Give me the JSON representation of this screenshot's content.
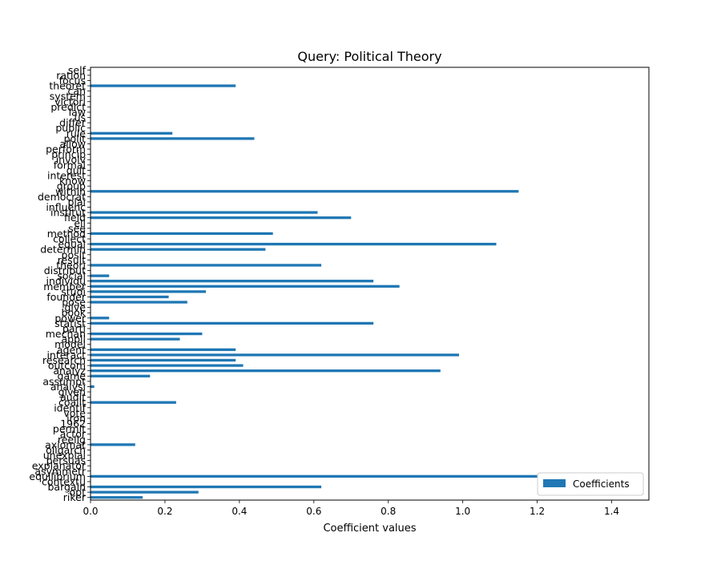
{
  "chart_data": {
    "type": "bar",
    "orientation": "horizontal",
    "title": "Query: Political Theory",
    "xlabel": "Coefficient values",
    "ylabel": "",
    "xlim": [
      0,
      1.5
    ],
    "x_ticks": [
      "0.0",
      "0.2",
      "0.4",
      "0.6",
      "0.8",
      "1.0",
      "1.2",
      "1.4"
    ],
    "legend": {
      "position": "lower-right",
      "entries": [
        "Coefficients"
      ]
    },
    "grid": false,
    "bar_color": "#1f77b4",
    "categories": [
      "riker",
      "opt",
      "bargain",
      "contextu",
      "equilibrium",
      "asymmetr",
      "explanator",
      "persuas",
      "unexplai",
      "oligarch",
      "axiomat",
      "reelig",
      "actor",
      "permit",
      "1962",
      "iron",
      "vote",
      "identif",
      "coalit",
      "audit",
      "given",
      "analysi",
      "assumpt",
      "game",
      "analyz",
      "outcom",
      "research",
      "interact",
      "agent",
      "model",
      "appli",
      "mechan",
      "parti",
      "statist",
      "power",
      "book",
      "give",
      "pose",
      "founder",
      "studi",
      "member",
      "individu",
      "social",
      "distribut",
      "theori",
      "result",
      "posit",
      "determin",
      "equal",
      "collect",
      "method",
      "see",
      "ell",
      "field",
      "institut",
      "influenc",
      "plai",
      "democrat",
      "within",
      "group",
      "know",
      "interest",
      "quit",
      "formal",
      "involv",
      "princip",
      "perform",
      "allow",
      "polit",
      "rule",
      "public",
      "differ",
      "us",
      "law",
      "predict",
      "victori",
      "system",
      "can",
      "theoret",
      "focus",
      "ration",
      "self"
    ],
    "values": [
      0.14,
      0.29,
      0.62,
      0.0,
      1.43,
      0.0,
      0.0,
      0.0,
      0.0,
      0.0,
      0.12,
      0.0,
      0.0,
      0.0,
      0.0,
      0.0,
      0.0,
      0.0,
      0.23,
      0.0,
      0.0,
      0.01,
      0.0,
      0.16,
      0.94,
      0.41,
      0.39,
      0.99,
      0.39,
      0.0,
      0.24,
      0.3,
      0.0,
      0.76,
      0.05,
      0.0,
      0.0,
      0.26,
      0.21,
      0.31,
      0.83,
      0.76,
      0.05,
      0.0,
      0.62,
      0.0,
      0.0,
      0.47,
      1.09,
      0.0,
      0.49,
      0.0,
      0.0,
      0.7,
      0.61,
      0.0,
      0.0,
      0.0,
      1.15,
      0.0,
      0.0,
      0.0,
      0.0,
      0.0,
      0.0,
      0.0,
      0.0,
      0.0,
      0.44,
      0.22,
      0.0,
      0.0,
      0.0,
      0.0,
      0.0,
      0.0,
      0.0,
      0.0,
      0.39,
      0.0,
      0.0,
      0.0
    ]
  }
}
